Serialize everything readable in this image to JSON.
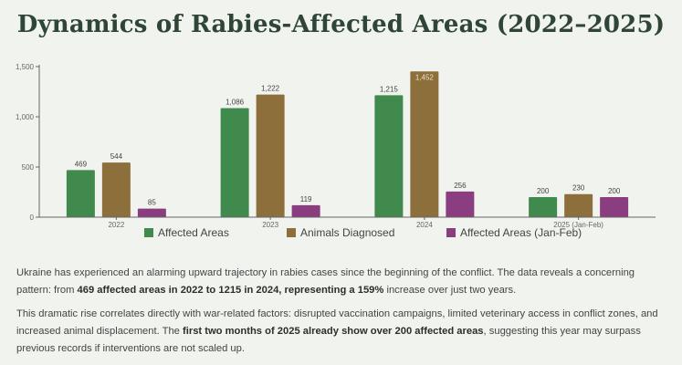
{
  "title": "Dynamics of Rabies-Affected Areas (2022–2025)",
  "chart_data": {
    "type": "bar",
    "categories": [
      "2022",
      "2023",
      "2024",
      "2025 (Jan-Feb)"
    ],
    "series": [
      {
        "name": "Affected Areas",
        "color": "#3f8a4c",
        "values": [
          469,
          1086,
          1215,
          200
        ]
      },
      {
        "name": "Animals Diagnosed",
        "color": "#8d6f3c",
        "values": [
          544,
          1222,
          1452,
          230
        ]
      },
      {
        "name": "Affected Areas (Jan-Feb)",
        "color": "#8a3d7f",
        "values": [
          85,
          119,
          256,
          200
        ]
      }
    ],
    "data_labels": [
      [
        "469",
        "1,086",
        "1,215",
        "200"
      ],
      [
        "544",
        "1,222",
        "1,452",
        "230"
      ],
      [
        "85",
        "119",
        "256",
        "200"
      ]
    ],
    "yticks": [
      0,
      500,
      1000,
      1500
    ],
    "ytick_labels": [
      "0",
      "500",
      "1,000",
      "1,500"
    ],
    "ylim": [
      0,
      1500
    ],
    "grid": false,
    "legend_position": "bottom"
  },
  "paragraphs": [
    [
      {
        "text": "Ukraine has experienced an alarming upward trajectory in rabies cases since the beginning of the conflict. The data reveals a concerning pattern: from ",
        "bold": false
      },
      {
        "text": "469 affected areas in 2022 to 1215 in 2024, representing a 159%",
        "bold": true
      },
      {
        "text": " increase over just two years.",
        "bold": false
      }
    ],
    [
      {
        "text": "This dramatic rise correlates directly with war-related factors: disrupted vaccination campaigns, limited veterinary access in conflict zones, and increased animal displacement. The ",
        "bold": false
      },
      {
        "text": "first two months of 2025 already show over 200 affected areas",
        "bold": true
      },
      {
        "text": ", suggesting this year may surpass previous records if interventions are not scaled up.",
        "bold": false
      }
    ]
  ]
}
